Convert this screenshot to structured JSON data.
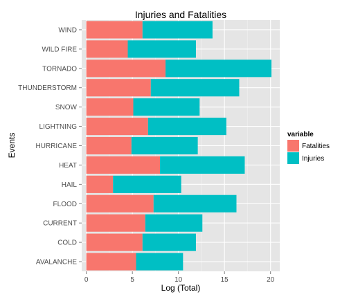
{
  "chart_data": {
    "type": "bar",
    "orientation": "horizontal",
    "stacked": true,
    "title": "Injuries and Fatalities",
    "xlabel": "Log (Total)",
    "ylabel": "Events",
    "xlim": [
      -0.5,
      21
    ],
    "xticks": [
      0,
      5,
      10,
      15,
      20
    ],
    "grid": true,
    "legend_position": "right",
    "categories": [
      "WIND",
      "WILD FIRE",
      "TORNADO",
      "THUNDERSTORM",
      "SNOW",
      "LIGHTNING",
      "HURRICANE",
      "HEAT",
      "HAIL",
      "FLOOD",
      "CURRENT",
      "COLD",
      "AVALANCHE"
    ],
    "series": [
      {
        "name": "Fatalities",
        "color": "#F8766D",
        "values": [
          6.1,
          4.5,
          8.6,
          7.0,
          5.1,
          6.7,
          4.9,
          8.0,
          2.9,
          7.3,
          6.4,
          6.1,
          5.4
        ]
      },
      {
        "name": "Injuries",
        "color": "#00BFC4",
        "values": [
          7.6,
          7.4,
          11.5,
          9.6,
          7.2,
          8.5,
          7.2,
          9.2,
          7.4,
          9.0,
          6.2,
          5.8,
          5.1
        ]
      }
    ],
    "legend": {
      "title": "variable",
      "items": [
        "Fatalities",
        "Injuries"
      ]
    }
  }
}
